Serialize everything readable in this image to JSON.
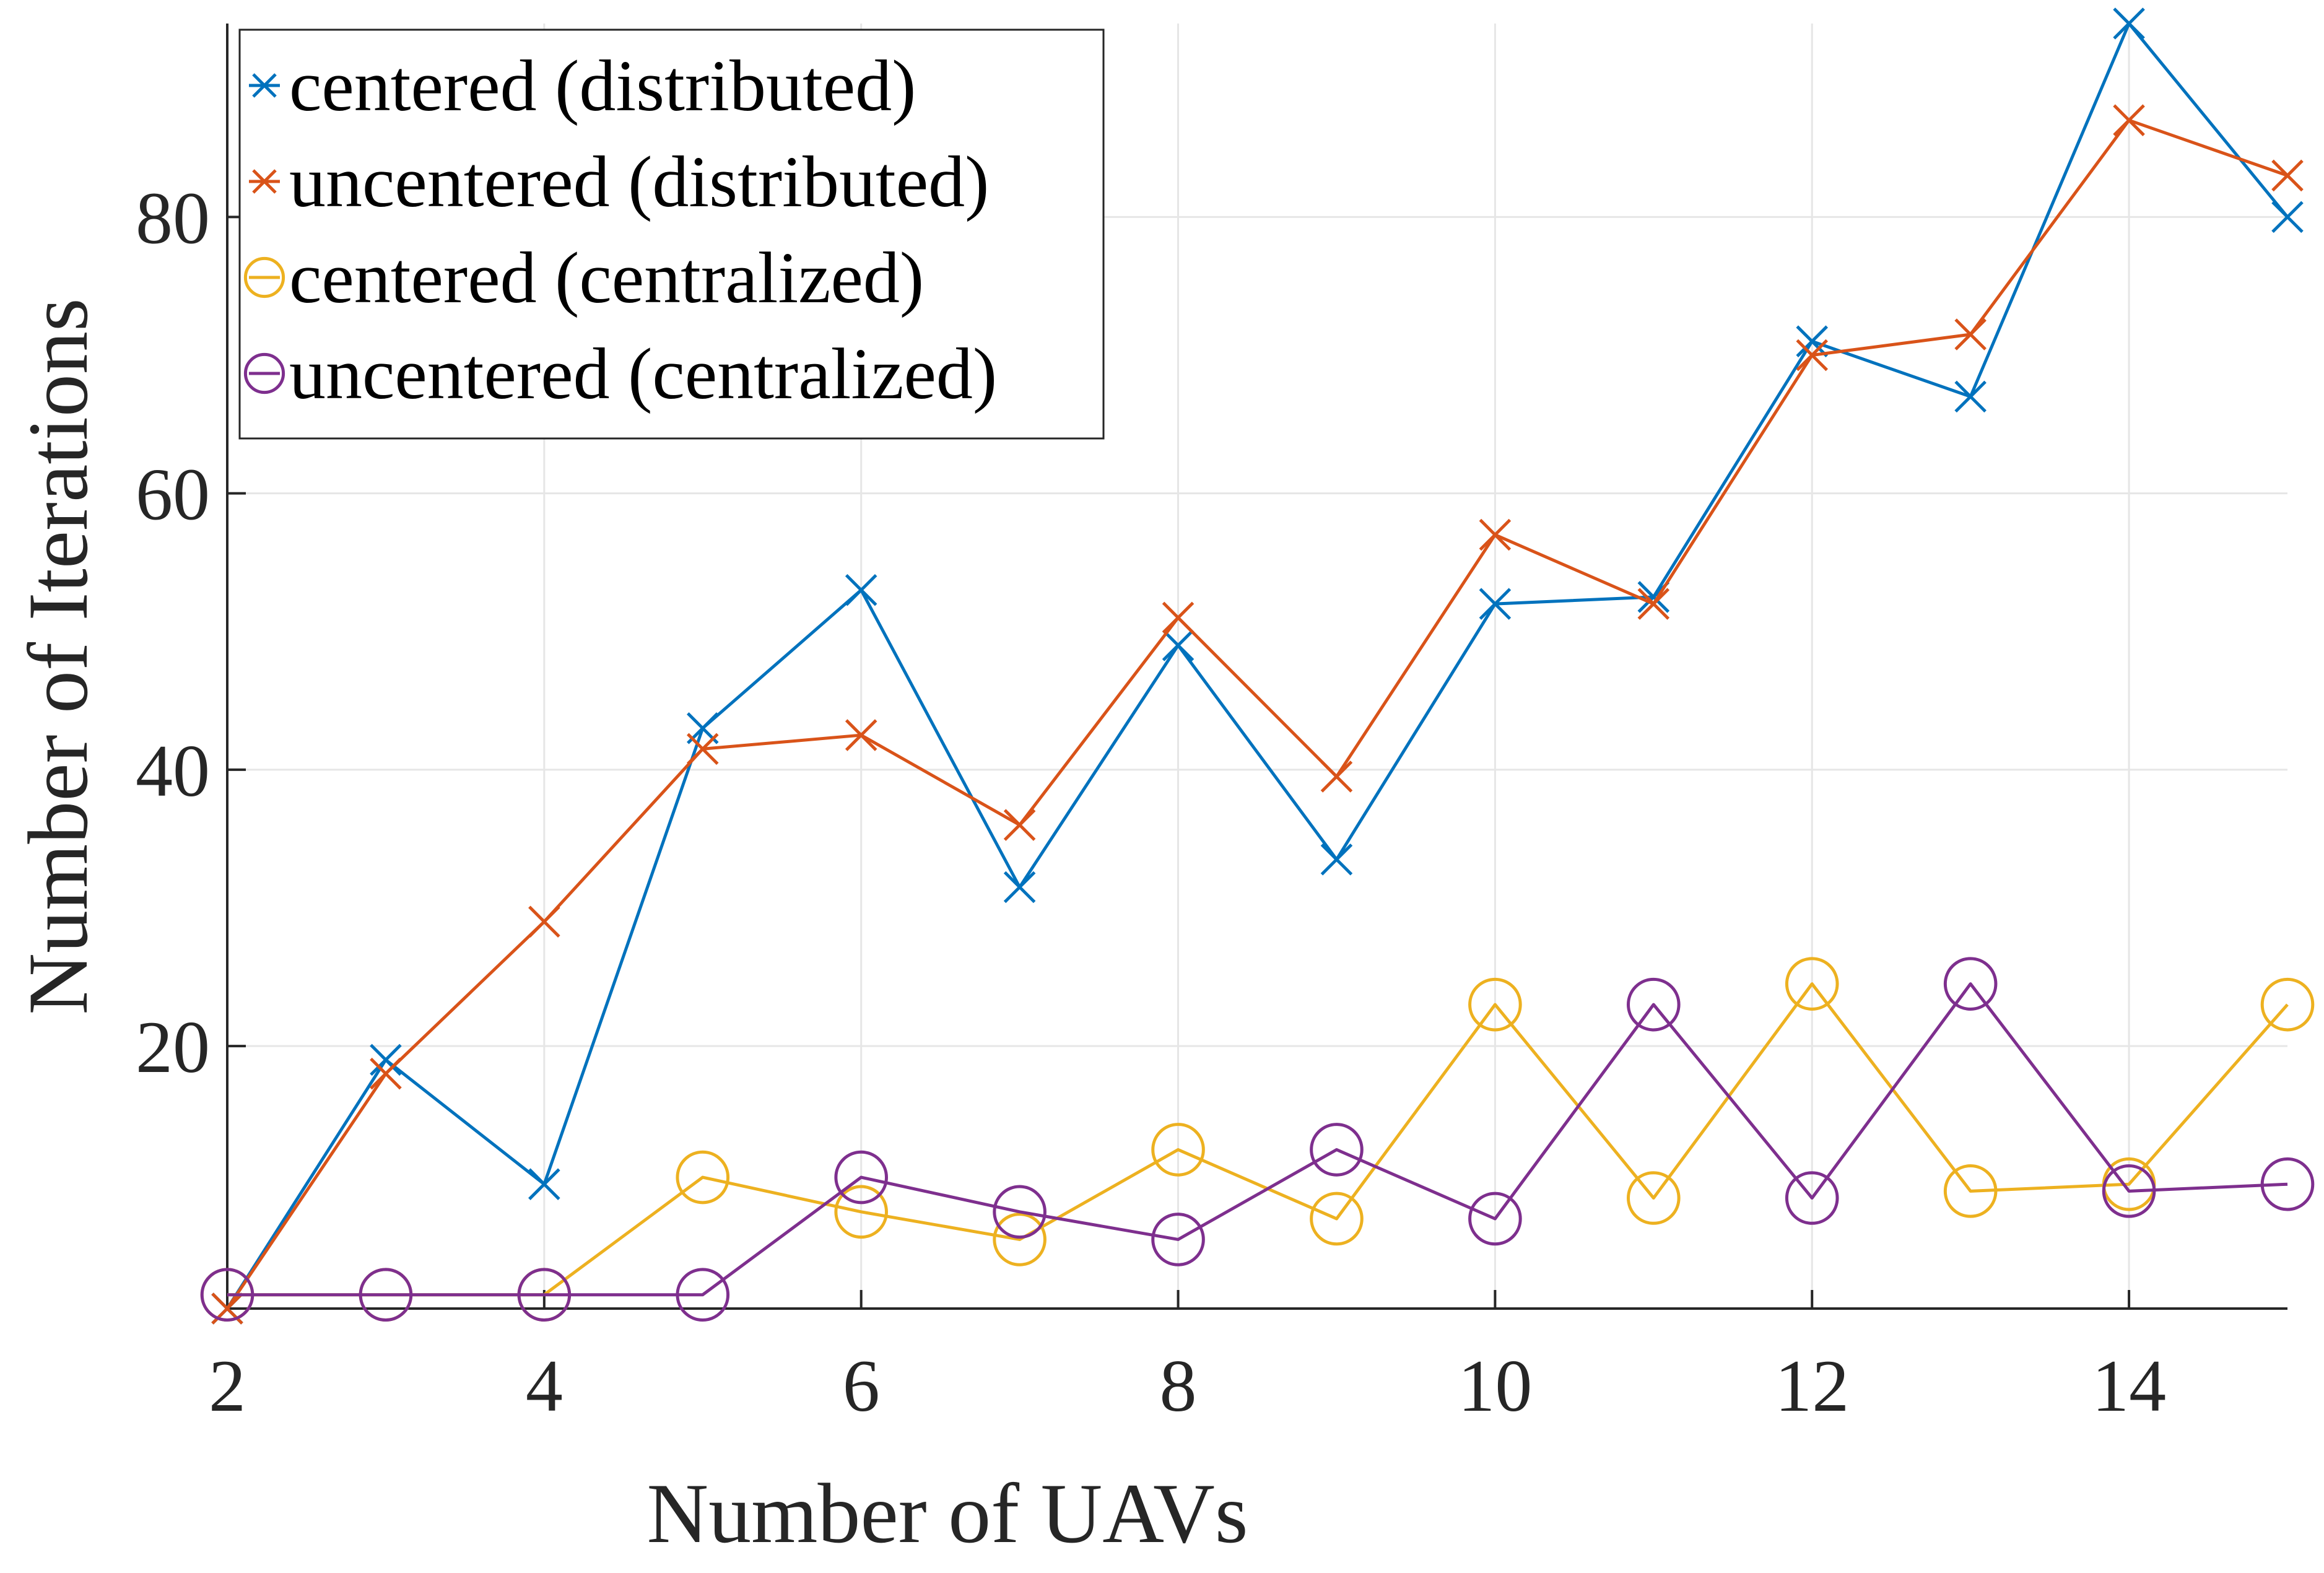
{
  "chart_data": {
    "type": "line",
    "title": "",
    "xlabel": "Number of UAVs",
    "ylabel": "Number of Iterations",
    "xlim": [
      2,
      15
    ],
    "ylim": [
      1,
      94
    ],
    "xticks": [
      "2",
      "4",
      "6",
      "8",
      "10",
      "12",
      "14"
    ],
    "yticks": [
      "20",
      "40",
      "60",
      "80"
    ],
    "grid": true,
    "legend_position": "top-left",
    "x": [
      2,
      3,
      4,
      5,
      6,
      7,
      8,
      9,
      10,
      11,
      12,
      13,
      14,
      15
    ],
    "series": [
      {
        "name": "centered (distributed)",
        "marker": "x",
        "color": "#0072BD",
        "values": [
          1,
          19,
          10,
          43,
          53,
          31.5,
          49,
          33.5,
          52,
          52.5,
          71,
          67,
          94,
          80
        ]
      },
      {
        "name": "uncentered (distributed)",
        "marker": "x",
        "color": "#D95319",
        "values": [
          1,
          18,
          29,
          41.5,
          42.5,
          36,
          51,
          39.5,
          57,
          52,
          70,
          71.5,
          87,
          83
        ]
      },
      {
        "name": "centered (centralized)",
        "marker": "o",
        "color": "#EDB120",
        "values": [
          2,
          2,
          2,
          10.5,
          8,
          6,
          12.5,
          7.5,
          23,
          9,
          24.5,
          9.5,
          10,
          23
        ]
      },
      {
        "name": "uncentered (centralized)",
        "marker": "o",
        "color": "#7E2F8E",
        "values": [
          2,
          2,
          2,
          2,
          10.5,
          8,
          6,
          12.5,
          7.5,
          23,
          9,
          24.5,
          9.5,
          10
        ]
      }
    ]
  }
}
